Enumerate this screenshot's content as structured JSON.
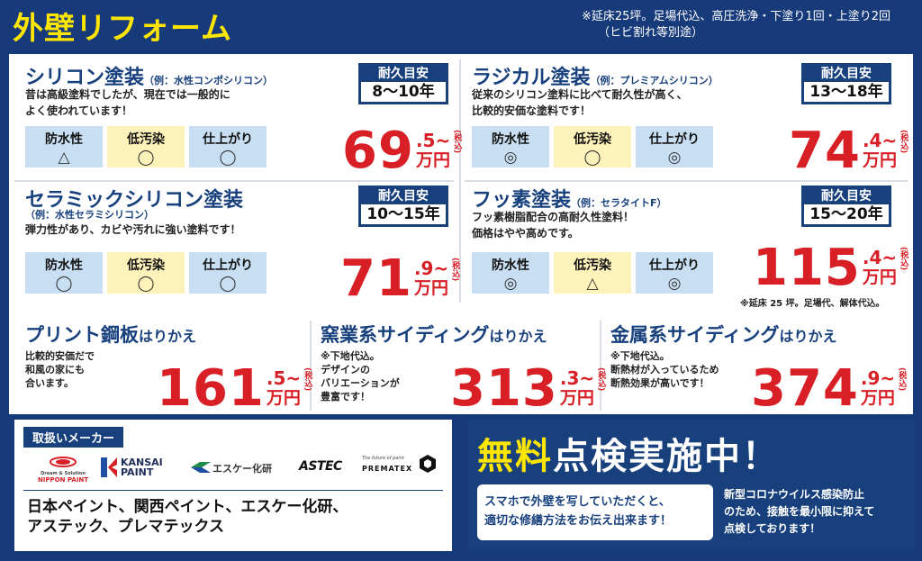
{
  "header": {
    "title": "外壁リフォーム",
    "note_line1": "※延床25坪。足場代込、高圧洗浄・下塗り1回・上塗り2回",
    "note_line2": "（ヒビ割れ等別途）"
  },
  "labels": {
    "durability": "耐久目安",
    "attr_water": "防水性",
    "attr_dirt": "低汚染",
    "attr_finish": "仕上がり",
    "yen": "万円",
    "tilde": "~",
    "tax": "(税込)",
    "replace_suffix": "はりかえ"
  },
  "coatings": [
    {
      "name": "シリコン塗装",
      "example": "（例：水性コンポシリコン）",
      "desc_line1": "昔は高級塗料でしたが、現在では一般的に",
      "desc_line2": "よく使われています！",
      "durability": "8〜10年",
      "water": "△",
      "dirt": "◯",
      "finish": "◯",
      "price": "69",
      "price_dec": ".5"
    },
    {
      "name": "ラジカル塗装",
      "example": "（例：プレミアムシリコン）",
      "desc_line1": "従来のシリコン塗料に比べて耐久性が高く、",
      "desc_line2": "比較的安価な塗料です！",
      "durability": "13〜18年",
      "water": "◎",
      "dirt": "◯",
      "finish": "◎",
      "price": "74",
      "price_dec": ".4"
    },
    {
      "name": "セラミックシリコン塗装",
      "example": "（例：水性セラミシリコン）",
      "desc_line1": "弾力性があり、カビや汚れに強い塗料です！",
      "desc_line2": "",
      "durability": "10〜15年",
      "water": "◯",
      "dirt": "◯",
      "finish": "◯",
      "price": "71",
      "price_dec": ".9"
    },
    {
      "name": "フッ素塗装",
      "example": "（例：セラタイトF）",
      "desc_line1": "フッ素樹脂配合の高耐久性塗料！",
      "desc_line2": "価格はやや高めです。",
      "durability": "15〜20年",
      "water": "◎",
      "dirt": "△",
      "finish": "◎",
      "price": "115",
      "price_dec": ".4"
    }
  ],
  "fluorine_note": "※延床 25 坪。足場代、解体代込。",
  "sidings": [
    {
      "name": "プリント鋼板",
      "desc": [
        "比較的安価だで",
        "和風の家にも",
        "合います。"
      ],
      "price": "161",
      "price_dec": ".5"
    },
    {
      "name": "窯業系サイディング",
      "desc": [
        "※下地代込。",
        "デザインの",
        "バリエーションが",
        "豊富です！"
      ],
      "price": "313",
      "price_dec": ".3"
    },
    {
      "name": "金属系サイディング",
      "desc": [
        "※下地代込。",
        "断熱材が入っているため",
        "断熱効果が高いです！"
      ],
      "price": "374",
      "price_dec": ".9"
    }
  ],
  "makers": {
    "tag": "取扱いメーカー",
    "logos": [
      "NIPPON PAINT",
      "KANSAI PAINT",
      "エスケー化研",
      "ASTEC",
      "PREMATEX"
    ],
    "nippon_tagline": "Dream & Solution",
    "prematex_tagline": "The future of paint",
    "list_line1": "日本ペイント、関西ペイント、エスケー化研、",
    "list_line2": "アステック、プレマテックス"
  },
  "inspection": {
    "title_hl": "無料",
    "title_rest": "点検実施中！",
    "bubble_line1": "スマホで外壁を写していただくと、",
    "bubble_line2": "適切な修繕方法をお伝え出来ます！",
    "covid_line1": "新型コロナウイルス感染防止",
    "covid_line2": "のため、接触を最小限に抑えて",
    "covid_line3": "点検しております！"
  },
  "colors": {
    "navy": "#173a7a",
    "yellow": "#ffe600",
    "red": "#d81f26",
    "blue_cell": "#c8dff3",
    "yellow_cell": "#fdf2b9"
  }
}
